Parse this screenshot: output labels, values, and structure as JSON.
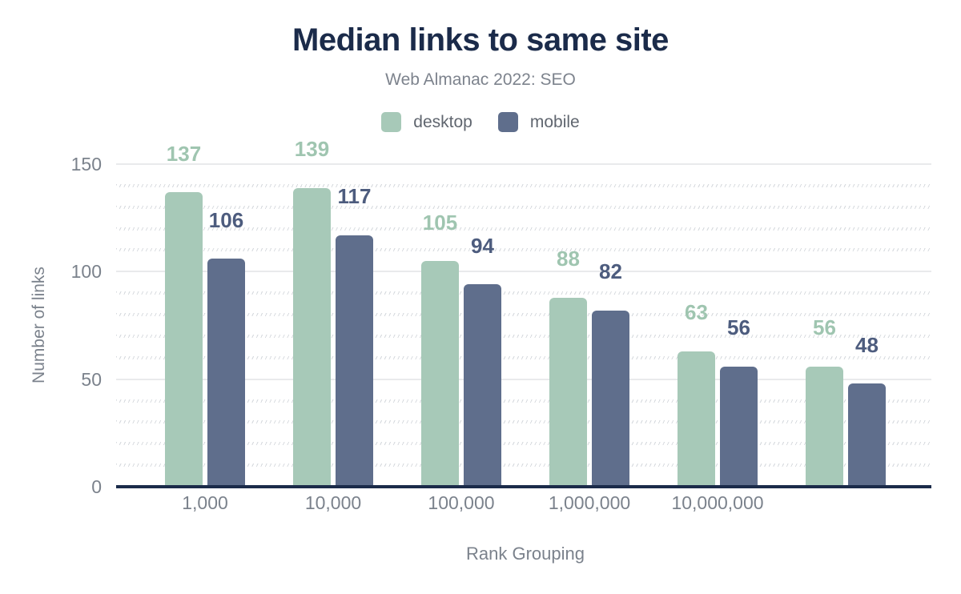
{
  "title": "Median links to same site",
  "subtitle": "Web Almanac 2022: SEO",
  "legend": {
    "items": [
      {
        "label": "desktop",
        "color": "#a7c9b8"
      },
      {
        "label": "mobile",
        "color": "#5f6e8c"
      }
    ]
  },
  "colors": {
    "title": "#1b2b4a",
    "subtitle": "#7d838d",
    "axis_line": "#1b2b4a",
    "tick_label": "#7b828c",
    "axis_title": "#7b828c",
    "major_gridline": "#e9eaec",
    "desktop_bar": "#a7c9b8",
    "desktop_value_label": "#9fc5b0",
    "mobile_bar": "#5f6e8c",
    "mobile_value_label": "#4d5c7e"
  },
  "chart_data": {
    "type": "bar",
    "categories": [
      "1,000",
      "10,000",
      "100,000",
      "1,000,000",
      "10,000,000",
      ""
    ],
    "series": [
      {
        "name": "desktop",
        "color": "#a7c9b8",
        "label_color": "#9fc5b0",
        "values": [
          137,
          139,
          105,
          88,
          63,
          56
        ]
      },
      {
        "name": "mobile",
        "color": "#5f6e8c",
        "label_color": "#4d5c7e",
        "values": [
          106,
          117,
          94,
          82,
          56,
          48
        ]
      }
    ],
    "xlabel": "Rank Grouping",
    "ylabel": "Number of links",
    "ylim": [
      0,
      150
    ],
    "yticks": [
      0,
      50,
      100,
      150
    ],
    "minor_gridline_step": 10,
    "grid": "horizontal",
    "legend_position": "top",
    "value_labels": "above bars, colored per series"
  }
}
